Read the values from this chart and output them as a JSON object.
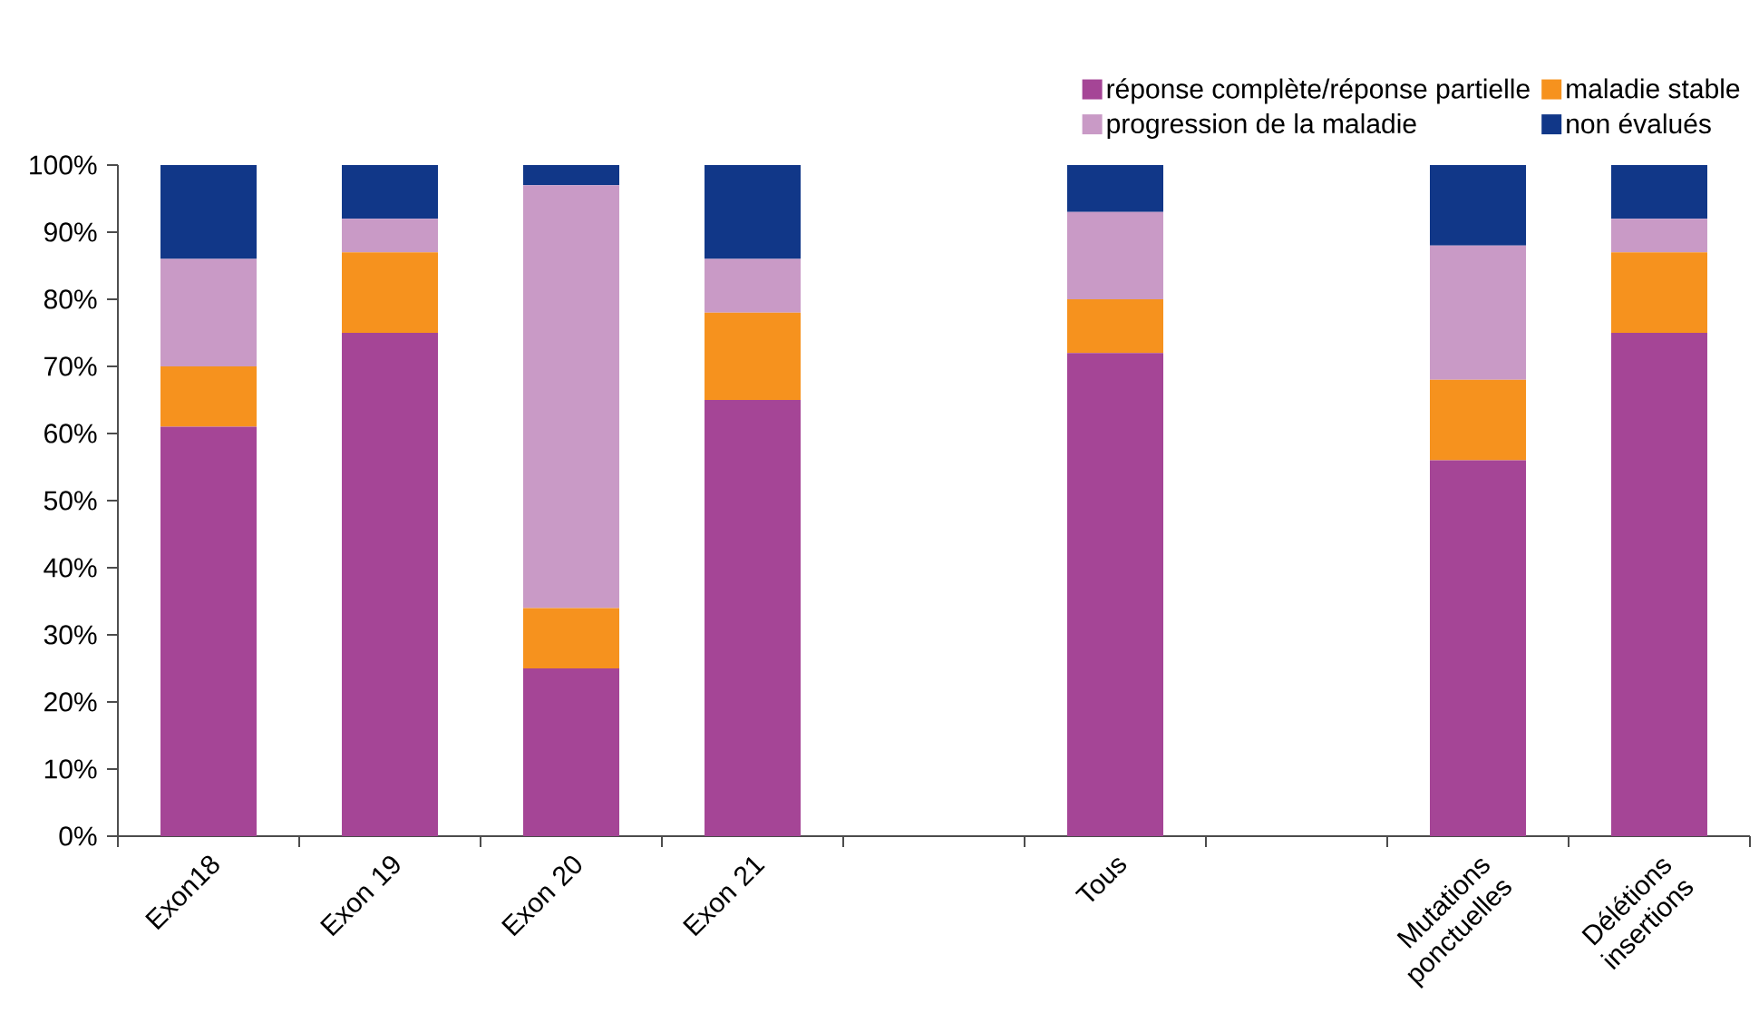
{
  "chart_data": {
    "type": "bar",
    "stacked": true,
    "categories": [
      "Exon18",
      "Exon 19",
      "Exon 20",
      "Exon 21",
      null,
      "Tous",
      null,
      "Mutations ponctuelles",
      "Délétions insertions"
    ],
    "series": [
      {
        "name": "réponse complète/réponse partielle",
        "color": "#a54596",
        "values": [
          61,
          75,
          25,
          65,
          null,
          72,
          null,
          56,
          75
        ]
      },
      {
        "name": "maladie stable",
        "color": "#f6921e",
        "values": [
          9,
          12,
          9,
          13,
          null,
          8,
          null,
          12,
          12
        ]
      },
      {
        "name": "progression de la maladie",
        "color": "#c99ac6",
        "values": [
          16,
          5,
          63,
          8,
          null,
          13,
          null,
          20,
          5
        ]
      },
      {
        "name": "non évalués",
        "color": "#113788",
        "values": [
          14,
          8,
          3,
          14,
          null,
          7,
          null,
          12,
          8
        ]
      }
    ],
    "ylim": [
      0,
      100
    ],
    "yticks": [
      {
        "value": 0,
        "label": "0%"
      },
      {
        "value": 10,
        "label": "10%"
      },
      {
        "value": 20,
        "label": "20%"
      },
      {
        "value": 30,
        "label": "30%"
      },
      {
        "value": 40,
        "label": "40%"
      },
      {
        "value": 50,
        "label": "50%"
      },
      {
        "value": 60,
        "label": "60%"
      },
      {
        "value": 70,
        "label": "70%"
      },
      {
        "value": 80,
        "label": "80%"
      },
      {
        "value": 90,
        "label": "90%"
      },
      {
        "value": 100,
        "label": "100%"
      }
    ],
    "legend": "top right"
  }
}
